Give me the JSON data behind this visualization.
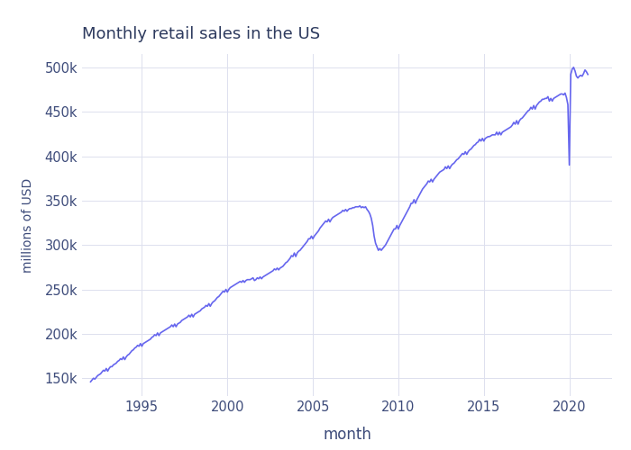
{
  "title": "Monthly retail sales in the US",
  "xlabel": "month",
  "ylabel": "millions of USD",
  "line_color": "#6666ee",
  "background_color": "#ffffff",
  "grid_color": "#dde0ee",
  "text_color": "#3d4b7a",
  "title_color": "#2d3a5e",
  "ylim": [
    130000,
    515000
  ],
  "xlim_start": 1991.5,
  "xlim_end": 2022.5,
  "yticks": [
    150000,
    200000,
    250000,
    300000,
    350000,
    400000,
    450000,
    500000
  ],
  "ytick_labels": [
    "150k",
    "200k",
    "250k",
    "300k",
    "350k",
    "400k",
    "450k",
    "500k"
  ],
  "xticks": [
    1995,
    2000,
    2005,
    2010,
    2015,
    2020
  ],
  "data": [
    [
      1992.0,
      146000
    ],
    [
      1992.083,
      148000
    ],
    [
      1992.167,
      150000
    ],
    [
      1992.25,
      149000
    ],
    [
      1992.333,
      151000
    ],
    [
      1992.417,
      153000
    ],
    [
      1992.5,
      154000
    ],
    [
      1992.583,
      155000
    ],
    [
      1992.667,
      157000
    ],
    [
      1992.75,
      159000
    ],
    [
      1992.833,
      158000
    ],
    [
      1992.917,
      161000
    ],
    [
      1993.0,
      158000
    ],
    [
      1993.083,
      161000
    ],
    [
      1993.167,
      163000
    ],
    [
      1993.25,
      163000
    ],
    [
      1993.333,
      165000
    ],
    [
      1993.417,
      166000
    ],
    [
      1993.5,
      167000
    ],
    [
      1993.583,
      169000
    ],
    [
      1993.667,
      170000
    ],
    [
      1993.75,
      172000
    ],
    [
      1993.833,
      171000
    ],
    [
      1993.917,
      174000
    ],
    [
      1994.0,
      171000
    ],
    [
      1994.083,
      174000
    ],
    [
      1994.167,
      176000
    ],
    [
      1994.25,
      177000
    ],
    [
      1994.333,
      179000
    ],
    [
      1994.417,
      181000
    ],
    [
      1994.5,
      182000
    ],
    [
      1994.583,
      184000
    ],
    [
      1994.667,
      185000
    ],
    [
      1994.75,
      187000
    ],
    [
      1994.833,
      186000
    ],
    [
      1994.917,
      189000
    ],
    [
      1995.0,
      186000
    ],
    [
      1995.083,
      189000
    ],
    [
      1995.167,
      190000
    ],
    [
      1995.25,
      191000
    ],
    [
      1995.333,
      192000
    ],
    [
      1995.417,
      193000
    ],
    [
      1995.5,
      194000
    ],
    [
      1995.583,
      196000
    ],
    [
      1995.667,
      197000
    ],
    [
      1995.75,
      199000
    ],
    [
      1995.833,
      198000
    ],
    [
      1995.917,
      201000
    ],
    [
      1996.0,
      198000
    ],
    [
      1996.083,
      201000
    ],
    [
      1996.167,
      202000
    ],
    [
      1996.25,
      203000
    ],
    [
      1996.333,
      204000
    ],
    [
      1996.417,
      205000
    ],
    [
      1996.5,
      206000
    ],
    [
      1996.583,
      207000
    ],
    [
      1996.667,
      208000
    ],
    [
      1996.75,
      210000
    ],
    [
      1996.833,
      208000
    ],
    [
      1996.917,
      211000
    ],
    [
      1997.0,
      208000
    ],
    [
      1997.083,
      211000
    ],
    [
      1997.167,
      212000
    ],
    [
      1997.25,
      213000
    ],
    [
      1997.333,
      215000
    ],
    [
      1997.417,
      216000
    ],
    [
      1997.5,
      217000
    ],
    [
      1997.583,
      218000
    ],
    [
      1997.667,
      219000
    ],
    [
      1997.75,
      221000
    ],
    [
      1997.833,
      219000
    ],
    [
      1997.917,
      222000
    ],
    [
      1998.0,
      219000
    ],
    [
      1998.083,
      222000
    ],
    [
      1998.167,
      223000
    ],
    [
      1998.25,
      224000
    ],
    [
      1998.333,
      225000
    ],
    [
      1998.417,
      226000
    ],
    [
      1998.5,
      228000
    ],
    [
      1998.583,
      229000
    ],
    [
      1998.667,
      230000
    ],
    [
      1998.75,
      232000
    ],
    [
      1998.833,
      231000
    ],
    [
      1998.917,
      234000
    ],
    [
      1999.0,
      231000
    ],
    [
      1999.083,
      234000
    ],
    [
      1999.167,
      236000
    ],
    [
      1999.25,
      237000
    ],
    [
      1999.333,
      239000
    ],
    [
      1999.417,
      241000
    ],
    [
      1999.5,
      242000
    ],
    [
      1999.583,
      244000
    ],
    [
      1999.667,
      246000
    ],
    [
      1999.75,
      248000
    ],
    [
      1999.833,
      247000
    ],
    [
      1999.917,
      250000
    ],
    [
      2000.0,
      247000
    ],
    [
      2000.083,
      250000
    ],
    [
      2000.167,
      252000
    ],
    [
      2000.25,
      253000
    ],
    [
      2000.333,
      254000
    ],
    [
      2000.417,
      255000
    ],
    [
      2000.5,
      256000
    ],
    [
      2000.583,
      257000
    ],
    [
      2000.667,
      258000
    ],
    [
      2000.75,
      259000
    ],
    [
      2000.833,
      258000
    ],
    [
      2000.917,
      260000
    ],
    [
      2001.0,
      258000
    ],
    [
      2001.083,
      260000
    ],
    [
      2001.167,
      261000
    ],
    [
      2001.25,
      261000
    ],
    [
      2001.333,
      261000
    ],
    [
      2001.417,
      262000
    ],
    [
      2001.5,
      263000
    ],
    [
      2001.583,
      260000
    ],
    [
      2001.667,
      261000
    ],
    [
      2001.75,
      263000
    ],
    [
      2001.833,
      262000
    ],
    [
      2001.917,
      264000
    ],
    [
      2002.0,
      262000
    ],
    [
      2002.083,
      264000
    ],
    [
      2002.167,
      265000
    ],
    [
      2002.25,
      266000
    ],
    [
      2002.333,
      267000
    ],
    [
      2002.417,
      268000
    ],
    [
      2002.5,
      269000
    ],
    [
      2002.583,
      270000
    ],
    [
      2002.667,
      271000
    ],
    [
      2002.75,
      273000
    ],
    [
      2002.833,
      272000
    ],
    [
      2002.917,
      274000
    ],
    [
      2003.0,
      272000
    ],
    [
      2003.083,
      274000
    ],
    [
      2003.167,
      275000
    ],
    [
      2003.25,
      276000
    ],
    [
      2003.333,
      278000
    ],
    [
      2003.417,
      280000
    ],
    [
      2003.5,
      281000
    ],
    [
      2003.583,
      283000
    ],
    [
      2003.667,
      285000
    ],
    [
      2003.75,
      288000
    ],
    [
      2003.833,
      287000
    ],
    [
      2003.917,
      291000
    ],
    [
      2004.0,
      287000
    ],
    [
      2004.083,
      291000
    ],
    [
      2004.167,
      293000
    ],
    [
      2004.25,
      294000
    ],
    [
      2004.333,
      296000
    ],
    [
      2004.417,
      298000
    ],
    [
      2004.5,
      300000
    ],
    [
      2004.583,
      302000
    ],
    [
      2004.667,
      304000
    ],
    [
      2004.75,
      307000
    ],
    [
      2004.833,
      307000
    ],
    [
      2004.917,
      310000
    ],
    [
      2005.0,
      307000
    ],
    [
      2005.083,
      310000
    ],
    [
      2005.167,
      312000
    ],
    [
      2005.25,
      314000
    ],
    [
      2005.333,
      316000
    ],
    [
      2005.417,
      319000
    ],
    [
      2005.5,
      321000
    ],
    [
      2005.583,
      323000
    ],
    [
      2005.667,
      325000
    ],
    [
      2005.75,
      327000
    ],
    [
      2005.833,
      326000
    ],
    [
      2005.917,
      329000
    ],
    [
      2006.0,
      326000
    ],
    [
      2006.083,
      329000
    ],
    [
      2006.167,
      331000
    ],
    [
      2006.25,
      332000
    ],
    [
      2006.333,
      333000
    ],
    [
      2006.417,
      334000
    ],
    [
      2006.5,
      335000
    ],
    [
      2006.583,
      336000
    ],
    [
      2006.667,
      337000
    ],
    [
      2006.75,
      339000
    ],
    [
      2006.833,
      338000
    ],
    [
      2006.917,
      340000
    ],
    [
      2007.0,
      338000
    ],
    [
      2007.083,
      340000
    ],
    [
      2007.167,
      341000
    ],
    [
      2007.25,
      341000
    ],
    [
      2007.333,
      342000
    ],
    [
      2007.417,
      342000
    ],
    [
      2007.5,
      343000
    ],
    [
      2007.583,
      343000
    ],
    [
      2007.667,
      343000
    ],
    [
      2007.75,
      344000
    ],
    [
      2007.833,
      342000
    ],
    [
      2007.917,
      343000
    ],
    [
      2008.0,
      342000
    ],
    [
      2008.083,
      343000
    ],
    [
      2008.167,
      340000
    ],
    [
      2008.25,
      338000
    ],
    [
      2008.333,
      335000
    ],
    [
      2008.417,
      330000
    ],
    [
      2008.5,
      322000
    ],
    [
      2008.583,
      310000
    ],
    [
      2008.667,
      302000
    ],
    [
      2008.75,
      298000
    ],
    [
      2008.833,
      294000
    ],
    [
      2008.917,
      296000
    ],
    [
      2009.0,
      294000
    ],
    [
      2009.083,
      296000
    ],
    [
      2009.167,
      298000
    ],
    [
      2009.25,
      300000
    ],
    [
      2009.333,
      303000
    ],
    [
      2009.417,
      306000
    ],
    [
      2009.5,
      309000
    ],
    [
      2009.583,
      312000
    ],
    [
      2009.667,
      315000
    ],
    [
      2009.75,
      318000
    ],
    [
      2009.833,
      318000
    ],
    [
      2009.917,
      322000
    ],
    [
      2010.0,
      318000
    ],
    [
      2010.083,
      322000
    ],
    [
      2010.167,
      325000
    ],
    [
      2010.25,
      328000
    ],
    [
      2010.333,
      331000
    ],
    [
      2010.417,
      334000
    ],
    [
      2010.5,
      337000
    ],
    [
      2010.583,
      340000
    ],
    [
      2010.667,
      343000
    ],
    [
      2010.75,
      347000
    ],
    [
      2010.833,
      347000
    ],
    [
      2010.917,
      351000
    ],
    [
      2011.0,
      347000
    ],
    [
      2011.083,
      351000
    ],
    [
      2011.167,
      354000
    ],
    [
      2011.25,
      357000
    ],
    [
      2011.333,
      360000
    ],
    [
      2011.417,
      363000
    ],
    [
      2011.5,
      365000
    ],
    [
      2011.583,
      367000
    ],
    [
      2011.667,
      369000
    ],
    [
      2011.75,
      372000
    ],
    [
      2011.833,
      371000
    ],
    [
      2011.917,
      374000
    ],
    [
      2012.0,
      371000
    ],
    [
      2012.083,
      374000
    ],
    [
      2012.167,
      376000
    ],
    [
      2012.25,
      378000
    ],
    [
      2012.333,
      380000
    ],
    [
      2012.417,
      382000
    ],
    [
      2012.5,
      383000
    ],
    [
      2012.583,
      384000
    ],
    [
      2012.667,
      385000
    ],
    [
      2012.75,
      388000
    ],
    [
      2012.833,
      386000
    ],
    [
      2012.917,
      389000
    ],
    [
      2013.0,
      386000
    ],
    [
      2013.083,
      389000
    ],
    [
      2013.167,
      391000
    ],
    [
      2013.25,
      392000
    ],
    [
      2013.333,
      394000
    ],
    [
      2013.417,
      396000
    ],
    [
      2013.5,
      397000
    ],
    [
      2013.583,
      399000
    ],
    [
      2013.667,
      401000
    ],
    [
      2013.75,
      403000
    ],
    [
      2013.833,
      402000
    ],
    [
      2013.917,
      405000
    ],
    [
      2014.0,
      402000
    ],
    [
      2014.083,
      405000
    ],
    [
      2014.167,
      407000
    ],
    [
      2014.25,
      408000
    ],
    [
      2014.333,
      410000
    ],
    [
      2014.417,
      412000
    ],
    [
      2014.5,
      413000
    ],
    [
      2014.583,
      415000
    ],
    [
      2014.667,
      416000
    ],
    [
      2014.75,
      419000
    ],
    [
      2014.833,
      417000
    ],
    [
      2014.917,
      420000
    ],
    [
      2015.0,
      417000
    ],
    [
      2015.083,
      420000
    ],
    [
      2015.167,
      421000
    ],
    [
      2015.25,
      422000
    ],
    [
      2015.333,
      422000
    ],
    [
      2015.417,
      423000
    ],
    [
      2015.5,
      424000
    ],
    [
      2015.583,
      424000
    ],
    [
      2015.667,
      424000
    ],
    [
      2015.75,
      427000
    ],
    [
      2015.833,
      424000
    ],
    [
      2015.917,
      427000
    ],
    [
      2016.0,
      424000
    ],
    [
      2016.083,
      427000
    ],
    [
      2016.167,
      428000
    ],
    [
      2016.25,
      429000
    ],
    [
      2016.333,
      430000
    ],
    [
      2016.417,
      431000
    ],
    [
      2016.5,
      432000
    ],
    [
      2016.583,
      433000
    ],
    [
      2016.667,
      435000
    ],
    [
      2016.75,
      438000
    ],
    [
      2016.833,
      436000
    ],
    [
      2016.917,
      440000
    ],
    [
      2017.0,
      436000
    ],
    [
      2017.083,
      440000
    ],
    [
      2017.167,
      442000
    ],
    [
      2017.25,
      443000
    ],
    [
      2017.333,
      445000
    ],
    [
      2017.417,
      447000
    ],
    [
      2017.5,
      449000
    ],
    [
      2017.583,
      451000
    ],
    [
      2017.667,
      452000
    ],
    [
      2017.75,
      455000
    ],
    [
      2017.833,
      453000
    ],
    [
      2017.917,
      457000
    ],
    [
      2018.0,
      453000
    ],
    [
      2018.083,
      457000
    ],
    [
      2018.167,
      459000
    ],
    [
      2018.25,
      461000
    ],
    [
      2018.333,
      462000
    ],
    [
      2018.417,
      464000
    ],
    [
      2018.5,
      464000
    ],
    [
      2018.583,
      465000
    ],
    [
      2018.667,
      465000
    ],
    [
      2018.75,
      467000
    ],
    [
      2018.833,
      462000
    ],
    [
      2018.917,
      465000
    ],
    [
      2019.0,
      462000
    ],
    [
      2019.083,
      465000
    ],
    [
      2019.167,
      466000
    ],
    [
      2019.25,
      467000
    ],
    [
      2019.333,
      468000
    ],
    [
      2019.417,
      469000
    ],
    [
      2019.5,
      470000
    ],
    [
      2019.583,
      470000
    ],
    [
      2019.667,
      469000
    ],
    [
      2019.75,
      471000
    ],
    [
      2019.833,
      466000
    ],
    [
      2019.917,
      458000
    ],
    [
      2020.0,
      390000
    ],
    [
      2020.083,
      492000
    ],
    [
      2020.167,
      498000
    ],
    [
      2020.25,
      500000
    ],
    [
      2020.333,
      496000
    ],
    [
      2020.417,
      490000
    ],
    [
      2020.5,
      488000
    ],
    [
      2020.583,
      490000
    ],
    [
      2020.667,
      491000
    ],
    [
      2020.75,
      490000
    ],
    [
      2020.833,
      493000
    ],
    [
      2020.917,
      497000
    ],
    [
      2021.0,
      495000
    ],
    [
      2021.083,
      492000
    ]
  ]
}
